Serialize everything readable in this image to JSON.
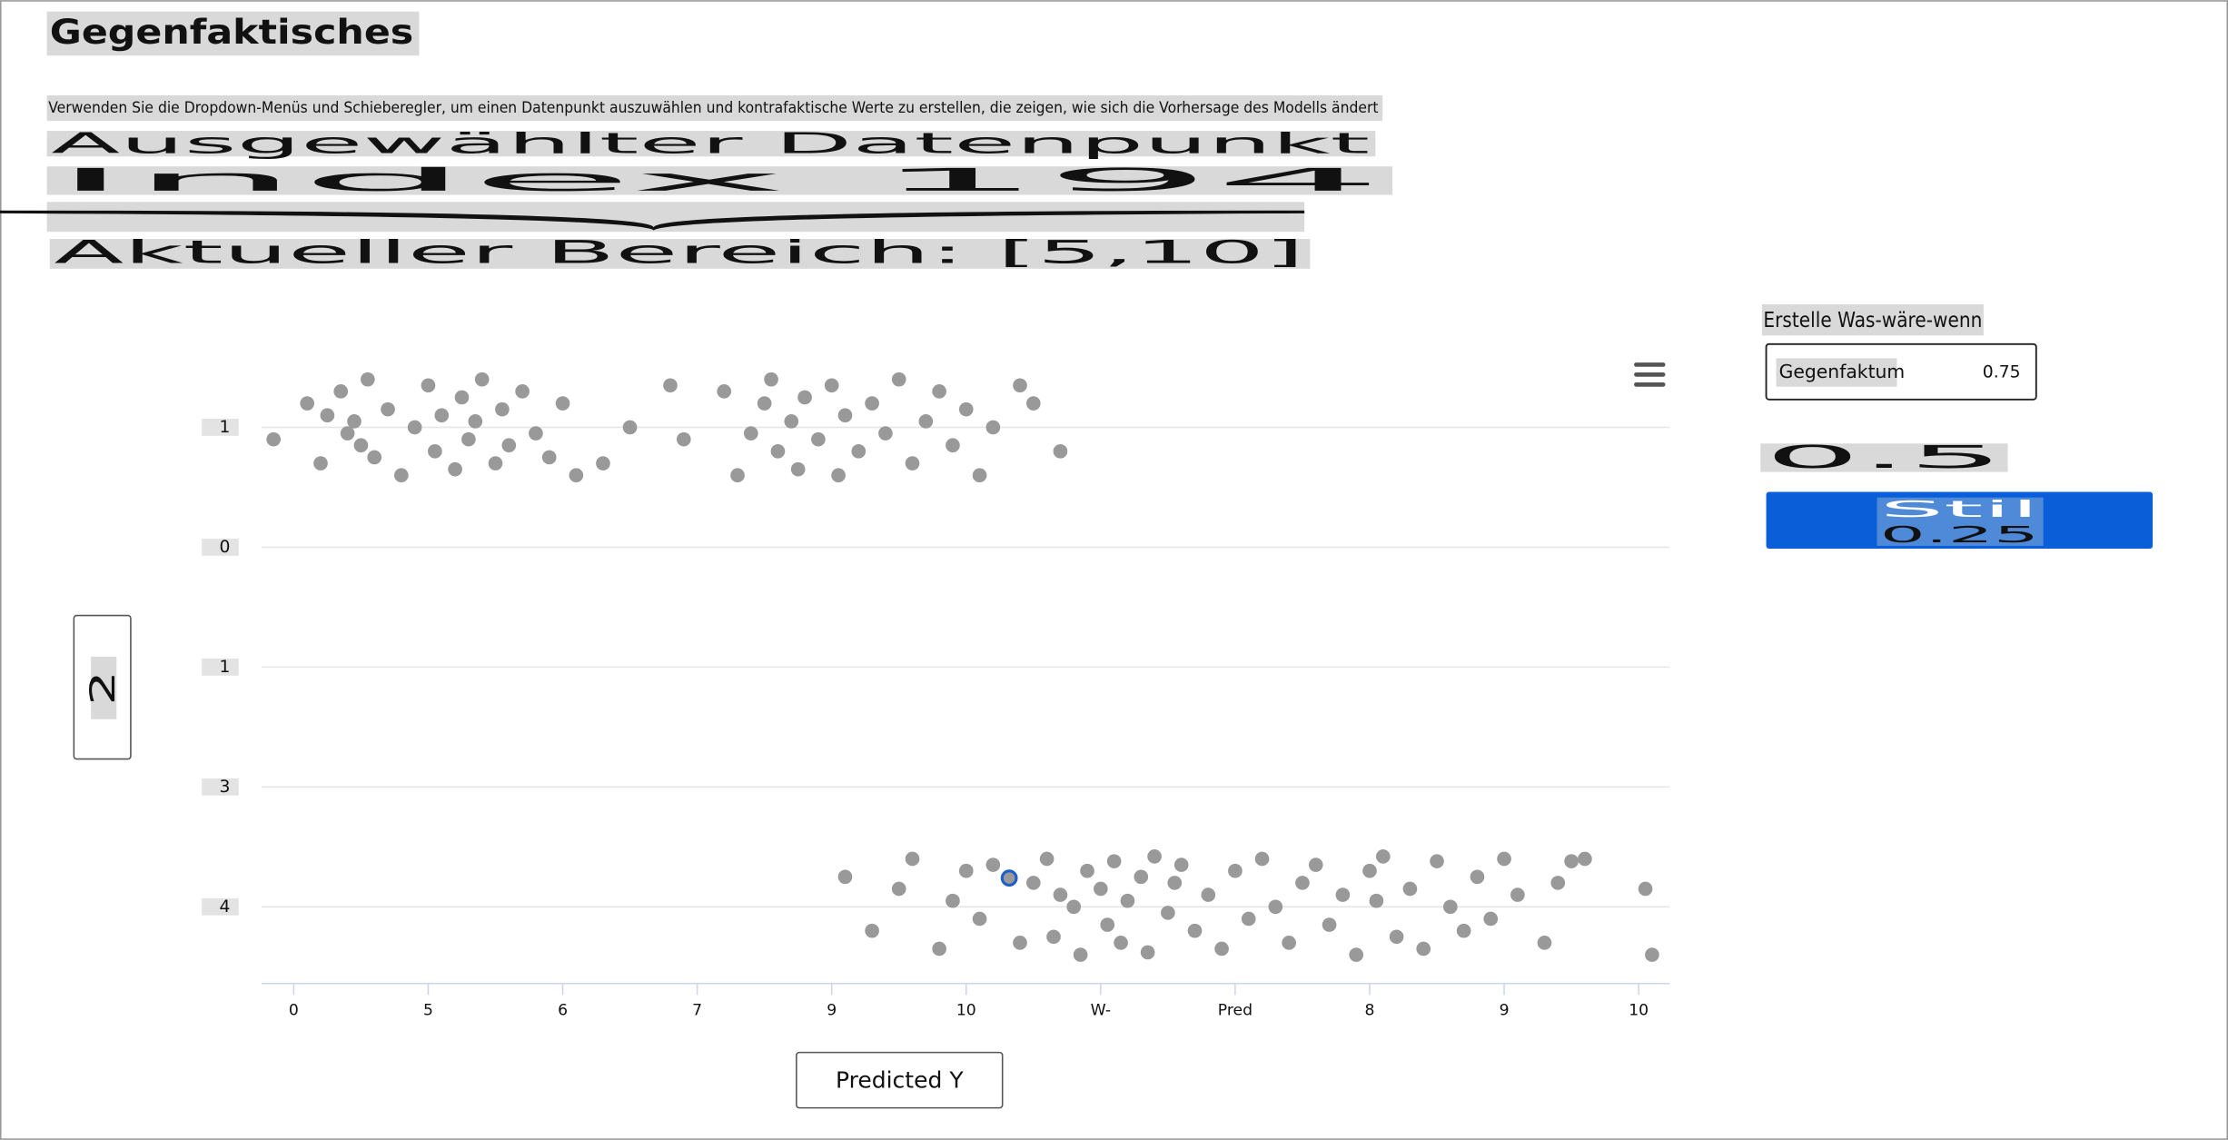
{
  "header": {
    "title": "Gegenfaktisches",
    "description": "Verwenden Sie die Dropdown-Menüs und Schieberegler, um einen Datenpunkt auszuwählen und kontrafaktische Werte zu erstellen, die zeigen, wie sich die Vorhersage des Modells ändert",
    "selected_label": "Ausgewählter Datenpunkt",
    "index": "Index 194",
    "range": "Aktueller Bereich: [5,10]"
  },
  "chart_data": {
    "type": "scatter",
    "x_label": "Predicted Y",
    "y_label": "2",
    "xlim": [
      -0.24,
      10.23
    ],
    "ylim": [
      -0.64,
      4.6
    ],
    "grid": true,
    "xticks": [
      0,
      {
        "value": 1,
        "label": "5"
      },
      {
        "value": 2,
        "label": "6"
      },
      {
        "value": 3,
        "label": "7"
      },
      {
        "value": 4,
        "label": "9"
      },
      {
        "value": 5,
        "label": "10"
      },
      {
        "value": 6,
        "label": "W-"
      },
      {
        "value": 7,
        "label": "Pred"
      },
      {
        "value": 8,
        "label": "8"
      },
      {
        "value": 9,
        "label": "9"
      },
      10
    ],
    "yticks": [
      {
        "value": 4,
        "label": "1"
      },
      {
        "value": 3,
        "label": "0"
      },
      {
        "value": 2,
        "label": "1"
      },
      {
        "value": 1,
        "label": "3"
      },
      {
        "value": 0,
        "label": "4"
      }
    ],
    "series": [
      {
        "color": "#999999",
        "x": [
          -0.15,
          0.1,
          0.2,
          0.25,
          0.35,
          0.4,
          0.45,
          0.5,
          0.55,
          0.6,
          0.7,
          0.8,
          0.9,
          1.0,
          1.05,
          1.1,
          1.2,
          1.25,
          1.3,
          1.35,
          1.4,
          1.5,
          1.55,
          1.6,
          1.7,
          1.8,
          1.9,
          2.0,
          2.1,
          2.3,
          2.5,
          2.8,
          2.9,
          3.2,
          3.3,
          3.4,
          3.5,
          3.55,
          3.6,
          3.7,
          3.75,
          3.8,
          3.9,
          4.0,
          4.05,
          4.1,
          4.2,
          4.3,
          4.4,
          4.5,
          4.6,
          4.7,
          4.8,
          4.9,
          5.0,
          5.1,
          5.2,
          5.4,
          5.5,
          5.7
        ],
        "values": [
          3.9,
          4.2,
          3.7,
          4.1,
          4.3,
          3.95,
          4.05,
          3.85,
          4.4,
          3.75,
          4.15,
          3.6,
          4.0,
          4.35,
          3.8,
          4.1,
          3.65,
          4.25,
          3.9,
          4.05,
          4.4,
          3.7,
          4.15,
          3.85,
          4.3,
          3.95,
          3.75,
          4.2,
          3.6,
          3.7,
          4.0,
          4.35,
          3.9,
          4.3,
          3.6,
          3.95,
          4.2,
          4.4,
          3.8,
          4.05,
          3.65,
          4.25,
          3.9,
          4.35,
          3.6,
          4.1,
          3.8,
          4.2,
          3.95,
          4.4,
          3.7,
          4.05,
          4.3,
          3.85,
          4.15,
          3.6,
          4.0,
          4.35,
          4.2,
          3.8
        ]
      },
      {
        "color": "#999999",
        "x": [
          4.1,
          4.3,
          4.5,
          4.6,
          4.8,
          4.9,
          5.0,
          5.1,
          5.2,
          5.4,
          5.5,
          5.6,
          5.65,
          5.7,
          5.8,
          5.85,
          5.9,
          6.0,
          6.05,
          6.1,
          6.15,
          6.2,
          6.3,
          6.35,
          6.4,
          6.5,
          6.55,
          6.6,
          6.7,
          6.8,
          6.9,
          7.0,
          7.1,
          7.2,
          7.3,
          7.4,
          7.5,
          7.6,
          7.7,
          7.8,
          7.9,
          8.0,
          8.05,
          8.1,
          8.2,
          8.3,
          8.4,
          8.5,
          8.6,
          8.7,
          8.8,
          8.9,
          9.0,
          9.1,
          9.3,
          9.4,
          9.5,
          9.6,
          10.05,
          10.1
        ],
        "values": [
          0.25,
          -0.2,
          0.15,
          0.4,
          -0.35,
          0.05,
          0.3,
          -0.1,
          0.35,
          -0.3,
          0.2,
          0.4,
          -0.25,
          0.1,
          0.0,
          -0.4,
          0.3,
          0.15,
          -0.15,
          0.38,
          -0.3,
          0.05,
          0.25,
          -0.38,
          0.42,
          -0.05,
          0.2,
          0.35,
          -0.2,
          0.1,
          -0.35,
          0.3,
          -0.1,
          0.4,
          0.0,
          -0.3,
          0.2,
          0.35,
          -0.15,
          0.1,
          -0.4,
          0.3,
          0.05,
          0.42,
          -0.25,
          0.15,
          -0.35,
          0.38,
          0.0,
          -0.2,
          0.25,
          -0.1,
          0.4,
          0.1,
          -0.3,
          0.2,
          0.38,
          0.4,
          0.15,
          -0.4
        ]
      },
      {
        "color": "#1f5fc8",
        "x": [
          5.32
        ],
        "values": [
          0.24
        ]
      }
    ]
  },
  "panel": {
    "title": "Erstelle Was-wäre-wenn",
    "field_label": "Gegenfaktum",
    "field_value": "0.75",
    "value": "0.5",
    "button": "Stil",
    "button_value": "0.25"
  }
}
